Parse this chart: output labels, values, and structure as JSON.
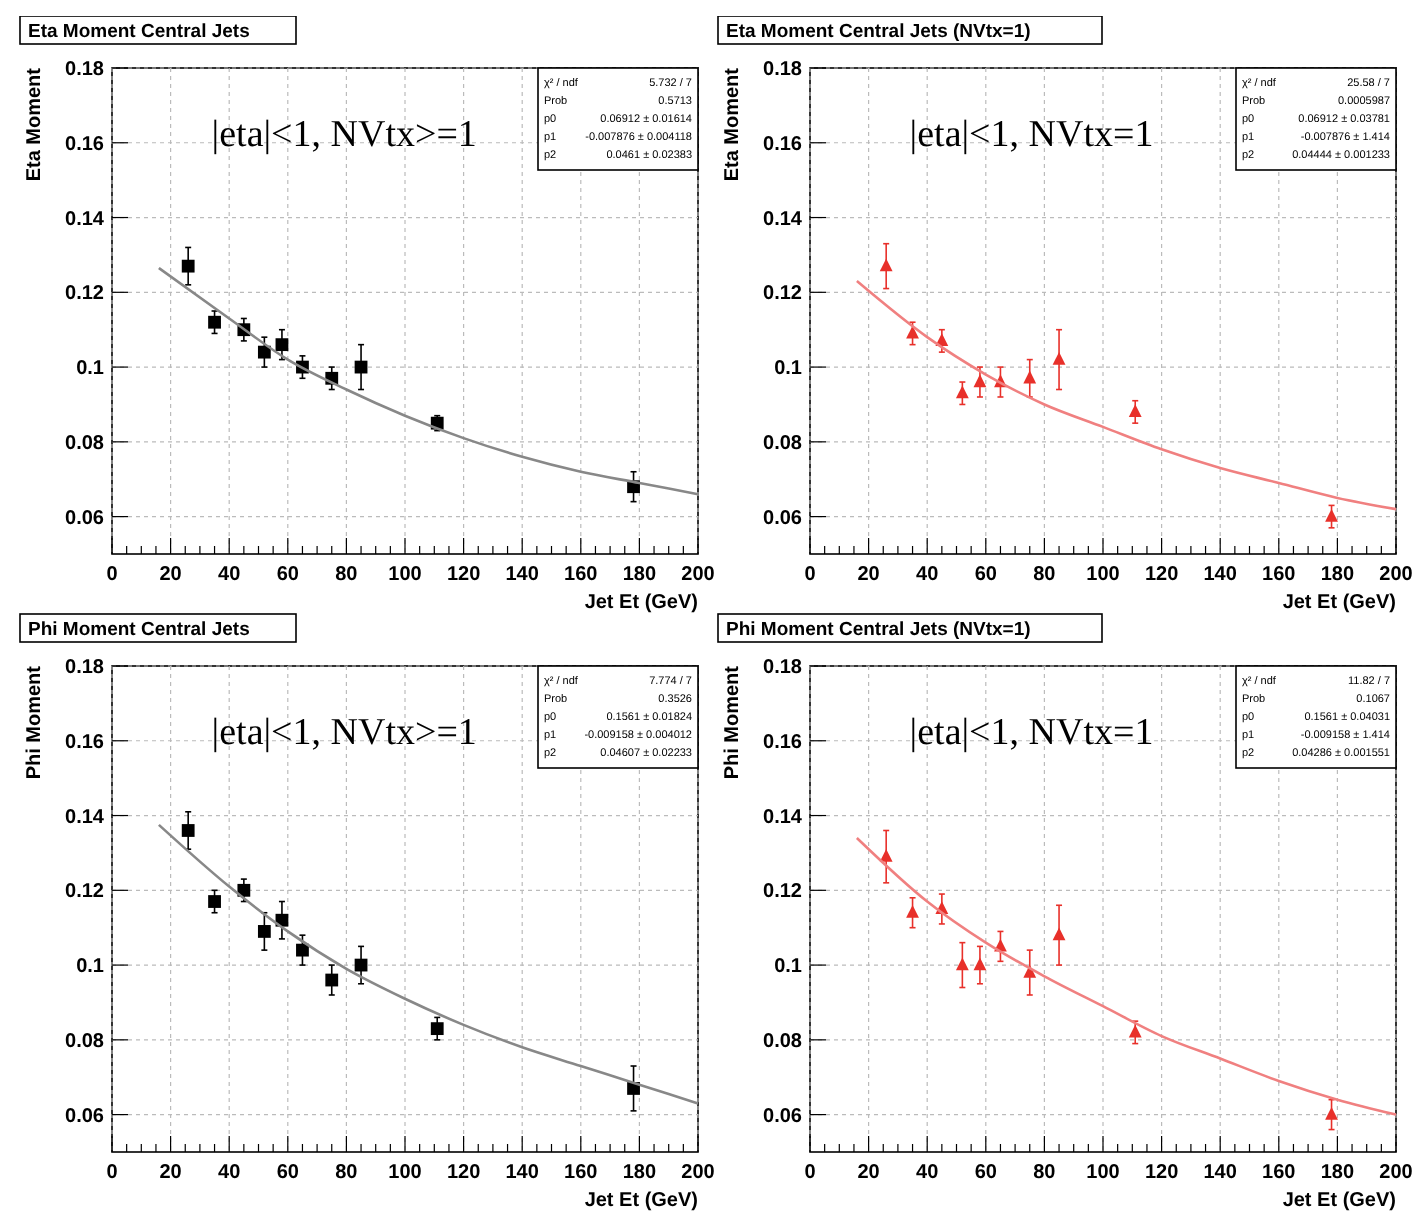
{
  "chart_data": [
    {
      "type": "scatter",
      "title": "Eta Moment Central Jets",
      "xlabel": "Jet Et (GeV)",
      "ylabel": "Eta Moment",
      "xlim": [
        0,
        200
      ],
      "xticks": [
        0,
        20,
        40,
        60,
        80,
        100,
        120,
        140,
        160,
        180,
        200
      ],
      "ylim": [
        0.05,
        0.18
      ],
      "yticks": [
        0.06,
        0.08,
        0.1,
        0.12,
        0.14,
        0.16,
        0.18
      ],
      "grid": true,
      "annotations": [
        "|eta|<1, NVtx>=1",
        "χ² / ndf",
        "5.732 / 7",
        "Prob",
        "0.5713",
        "p0",
        "0.06912 ± 0.01614",
        "p1",
        "-0.007876 ± 0.004118",
        "p2",
        "0.0461 ± 0.02383"
      ],
      "series": [
        {
          "type": "scatter",
          "marker": "square",
          "color": "#000000",
          "x": [
            26,
            35,
            45,
            52,
            58,
            65,
            75,
            85,
            111,
            178
          ],
          "values": [
            0.127,
            0.112,
            0.11,
            0.104,
            0.106,
            0.1,
            0.097,
            0.1,
            0.085,
            0.068
          ],
          "errors": [
            0.005,
            0.003,
            0.003,
            0.004,
            0.004,
            0.003,
            0.003,
            0.006,
            0.002,
            0.004
          ]
        },
        {
          "type": "line",
          "color": "#888888",
          "x": [
            16,
            40,
            60,
            80,
            100,
            120,
            140,
            160,
            180,
            200
          ],
          "values": [
            0.1265,
            0.113,
            0.102,
            0.094,
            0.087,
            0.081,
            0.076,
            0.072,
            0.069,
            0.066
          ]
        }
      ]
    },
    {
      "type": "scatter",
      "title": "Eta Moment Central Jets (NVtx=1)",
      "xlabel": "Jet Et (GeV)",
      "ylabel": "Eta Moment",
      "xlim": [
        0,
        200
      ],
      "xticks": [
        0,
        20,
        40,
        60,
        80,
        100,
        120,
        140,
        160,
        180,
        200
      ],
      "ylim": [
        0.05,
        0.18
      ],
      "yticks": [
        0.06,
        0.08,
        0.1,
        0.12,
        0.14,
        0.16,
        0.18
      ],
      "grid": true,
      "annotations": [
        "|eta|<1, NVtx=1",
        "χ² / ndf",
        "25.58 / 7",
        "Prob",
        "0.0005987",
        "p0",
        "0.06912 ± 0.03781",
        "p1",
        "-0.007876 ± 1.414",
        "p2",
        "0.04444 ± 0.001233"
      ],
      "series": [
        {
          "type": "scatter",
          "marker": "triangle",
          "color": "#e8302a",
          "x": [
            26,
            35,
            45,
            52,
            58,
            65,
            75,
            85,
            111,
            178
          ],
          "values": [
            0.127,
            0.109,
            0.107,
            0.093,
            0.096,
            0.096,
            0.097,
            0.102,
            0.088,
            0.06
          ],
          "errors": [
            0.006,
            0.003,
            0.003,
            0.003,
            0.004,
            0.004,
            0.005,
            0.008,
            0.003,
            0.003
          ]
        },
        {
          "type": "line",
          "color": "#f08080",
          "x": [
            16,
            40,
            60,
            80,
            100,
            120,
            140,
            160,
            180,
            200
          ],
          "values": [
            0.123,
            0.108,
            0.098,
            0.09,
            0.084,
            0.078,
            0.073,
            0.069,
            0.065,
            0.062
          ]
        }
      ]
    },
    {
      "type": "scatter",
      "title": "Phi Moment Central Jets",
      "xlabel": "Jet Et (GeV)",
      "ylabel": "Phi Moment",
      "xlim": [
        0,
        200
      ],
      "xticks": [
        0,
        20,
        40,
        60,
        80,
        100,
        120,
        140,
        160,
        180,
        200
      ],
      "ylim": [
        0.05,
        0.18
      ],
      "yticks": [
        0.06,
        0.08,
        0.1,
        0.12,
        0.14,
        0.16,
        0.18
      ],
      "grid": true,
      "annotations": [
        "|eta|<1, NVtx>=1",
        "χ² / ndf",
        "7.774 / 7",
        "Prob",
        "0.3526",
        "p0",
        "0.1561 ± 0.01824",
        "p1",
        "-0.009158 ± 0.004012",
        "p2",
        "0.04607 ± 0.02233"
      ],
      "series": [
        {
          "type": "scatter",
          "marker": "square",
          "color": "#000000",
          "x": [
            26,
            35,
            45,
            52,
            58,
            65,
            75,
            85,
            111,
            178
          ],
          "values": [
            0.136,
            0.117,
            0.12,
            0.109,
            0.112,
            0.104,
            0.096,
            0.1,
            0.083,
            0.067
          ],
          "errors": [
            0.005,
            0.003,
            0.003,
            0.005,
            0.005,
            0.004,
            0.004,
            0.005,
            0.003,
            0.006
          ]
        },
        {
          "type": "line",
          "color": "#888888",
          "x": [
            16,
            40,
            60,
            80,
            100,
            120,
            140,
            160,
            180,
            200
          ],
          "values": [
            0.1375,
            0.121,
            0.109,
            0.099,
            0.091,
            0.084,
            0.078,
            0.073,
            0.068,
            0.063
          ]
        }
      ]
    },
    {
      "type": "scatter",
      "title": "Phi Moment Central Jets (NVtx=1)",
      "xlabel": "Jet Et (GeV)",
      "ylabel": "Phi Moment",
      "xlim": [
        0,
        200
      ],
      "xticks": [
        0,
        20,
        40,
        60,
        80,
        100,
        120,
        140,
        160,
        180,
        200
      ],
      "ylim": [
        0.05,
        0.18
      ],
      "yticks": [
        0.06,
        0.08,
        0.1,
        0.12,
        0.14,
        0.16,
        0.18
      ],
      "grid": true,
      "annotations": [
        "|eta|<1, NVtx=1",
        "χ² / ndf",
        "11.82 / 7",
        "Prob",
        "0.1067",
        "p0",
        "0.1561 ± 0.04031",
        "p1",
        "-0.009158 ± 1.414",
        "p2",
        "0.04286 ± 0.001551"
      ],
      "series": [
        {
          "type": "scatter",
          "marker": "triangle",
          "color": "#e8302a",
          "x": [
            26,
            35,
            45,
            52,
            58,
            65,
            75,
            85,
            111,
            178
          ],
          "values": [
            0.129,
            0.114,
            0.115,
            0.1,
            0.1,
            0.105,
            0.098,
            0.108,
            0.082,
            0.06
          ],
          "errors": [
            0.007,
            0.004,
            0.004,
            0.006,
            0.005,
            0.004,
            0.006,
            0.008,
            0.003,
            0.004
          ]
        },
        {
          "type": "line",
          "color": "#f08080",
          "x": [
            16,
            40,
            60,
            80,
            100,
            120,
            140,
            160,
            180,
            200
          ],
          "values": [
            0.134,
            0.117,
            0.106,
            0.097,
            0.089,
            0.081,
            0.075,
            0.069,
            0.064,
            0.06
          ]
        }
      ]
    }
  ]
}
